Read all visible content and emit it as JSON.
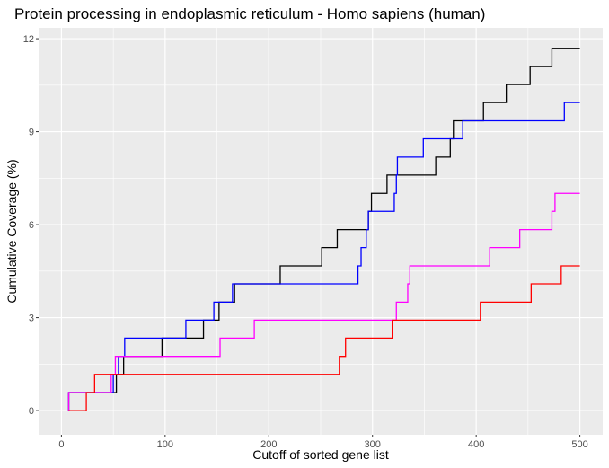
{
  "chart_data": {
    "type": "line",
    "title": "Protein processing in endoplasmic reticulum - Homo sapiens (human)",
    "xlabel": "Cutoff of sorted gene list",
    "ylabel": "Cumulative Coverage (%)",
    "xlim": [
      -22,
      522
    ],
    "ylim": [
      -0.78,
      12.35
    ],
    "x_ticks": [
      0,
      100,
      200,
      300,
      400,
      500
    ],
    "x_tick_labels": [
      "0",
      "100",
      "200",
      "300",
      "400",
      "500"
    ],
    "y_ticks": [
      0,
      3,
      6,
      9,
      12
    ],
    "y_tick_labels": [
      "0",
      "3",
      "6",
      "9",
      "12"
    ],
    "grid": true,
    "legend": "none",
    "series": [
      {
        "color": "#000000",
        "points": [
          [
            7,
            0
          ],
          [
            7,
            0.58
          ],
          [
            30,
            0.58
          ],
          [
            30,
            0.58
          ],
          [
            53,
            0.58
          ],
          [
            53,
            1.17
          ],
          [
            60,
            1.17
          ],
          [
            60,
            1.75
          ],
          [
            97,
            1.75
          ],
          [
            97,
            2.34
          ],
          [
            137,
            2.34
          ],
          [
            137,
            2.92
          ],
          [
            152,
            2.92
          ],
          [
            152,
            3.5
          ],
          [
            167,
            3.5
          ],
          [
            167,
            4.09
          ],
          [
            211,
            4.09
          ],
          [
            211,
            4.67
          ],
          [
            251,
            4.67
          ],
          [
            251,
            5.26
          ],
          [
            266,
            5.26
          ],
          [
            266,
            5.84
          ],
          [
            296,
            5.84
          ],
          [
            296,
            6.43
          ],
          [
            299,
            6.43
          ],
          [
            299,
            7.01
          ],
          [
            314,
            7.01
          ],
          [
            314,
            7.6
          ],
          [
            361,
            7.6
          ],
          [
            361,
            8.18
          ],
          [
            375,
            8.18
          ],
          [
            375,
            8.77
          ],
          [
            378,
            8.77
          ],
          [
            378,
            9.35
          ],
          [
            407,
            9.35
          ],
          [
            407,
            9.94
          ],
          [
            429,
            9.94
          ],
          [
            429,
            10.52
          ],
          [
            452,
            10.52
          ],
          [
            452,
            11.1
          ],
          [
            473,
            11.1
          ],
          [
            473,
            11.69
          ],
          [
            500,
            11.69
          ]
        ]
      },
      {
        "color": "#0000ff",
        "points": [
          [
            7,
            0
          ],
          [
            7,
            0.58
          ],
          [
            15,
            0.58
          ],
          [
            15,
            0.58
          ],
          [
            50,
            0.58
          ],
          [
            50,
            1.17
          ],
          [
            55,
            1.17
          ],
          [
            55,
            1.75
          ],
          [
            61,
            1.75
          ],
          [
            61,
            2.34
          ],
          [
            120,
            2.34
          ],
          [
            120,
            2.92
          ],
          [
            147,
            2.92
          ],
          [
            147,
            3.5
          ],
          [
            165,
            3.5
          ],
          [
            165,
            4.09
          ],
          [
            286,
            4.09
          ],
          [
            286,
            4.67
          ],
          [
            289,
            4.67
          ],
          [
            289,
            5.26
          ],
          [
            294,
            5.26
          ],
          [
            294,
            5.84
          ],
          [
            296,
            5.84
          ],
          [
            296,
            6.43
          ],
          [
            321,
            6.43
          ],
          [
            321,
            7.01
          ],
          [
            323,
            7.01
          ],
          [
            323,
            7.6
          ],
          [
            324,
            7.6
          ],
          [
            324,
            8.18
          ],
          [
            349,
            8.18
          ],
          [
            349,
            8.77
          ],
          [
            387,
            8.77
          ],
          [
            387,
            9.35
          ],
          [
            485,
            9.35
          ],
          [
            485,
            9.94
          ],
          [
            500,
            9.94
          ]
        ]
      },
      {
        "color": "#ff00ff",
        "points": [
          [
            7,
            0
          ],
          [
            7,
            0.58
          ],
          [
            48,
            0.58
          ],
          [
            48,
            1.17
          ],
          [
            52,
            1.17
          ],
          [
            52,
            1.75
          ],
          [
            153,
            1.75
          ],
          [
            153,
            2.34
          ],
          [
            186,
            2.34
          ],
          [
            186,
            2.92
          ],
          [
            323,
            2.92
          ],
          [
            323,
            3.5
          ],
          [
            334,
            3.5
          ],
          [
            334,
            4.09
          ],
          [
            336,
            4.09
          ],
          [
            336,
            4.67
          ],
          [
            413,
            4.67
          ],
          [
            413,
            5.26
          ],
          [
            442,
            5.26
          ],
          [
            442,
            5.84
          ],
          [
            473,
            5.84
          ],
          [
            473,
            6.43
          ],
          [
            476,
            6.43
          ],
          [
            476,
            7.01
          ],
          [
            500,
            7.01
          ]
        ]
      },
      {
        "color": "#ff0000",
        "points": [
          [
            7,
            0
          ],
          [
            24,
            0
          ],
          [
            24,
            0.58
          ],
          [
            32,
            0.58
          ],
          [
            32,
            1.17
          ],
          [
            268,
            1.17
          ],
          [
            268,
            1.75
          ],
          [
            274,
            1.75
          ],
          [
            274,
            2.34
          ],
          [
            319,
            2.34
          ],
          [
            319,
            2.92
          ],
          [
            404,
            2.92
          ],
          [
            404,
            3.5
          ],
          [
            453,
            3.5
          ],
          [
            453,
            4.09
          ],
          [
            482,
            4.09
          ],
          [
            482,
            4.67
          ],
          [
            500,
            4.67
          ]
        ]
      }
    ]
  }
}
